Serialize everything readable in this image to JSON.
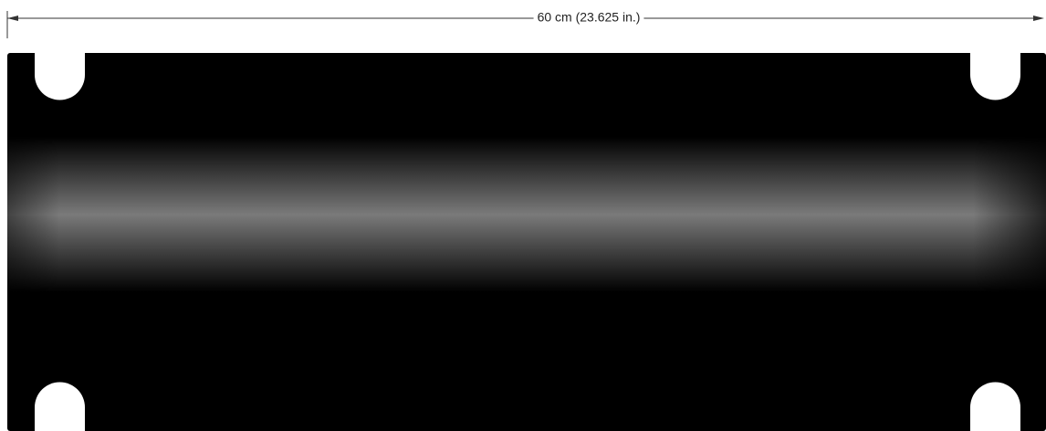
{
  "dimension": {
    "label": "60 cm (23.625 in.)"
  }
}
